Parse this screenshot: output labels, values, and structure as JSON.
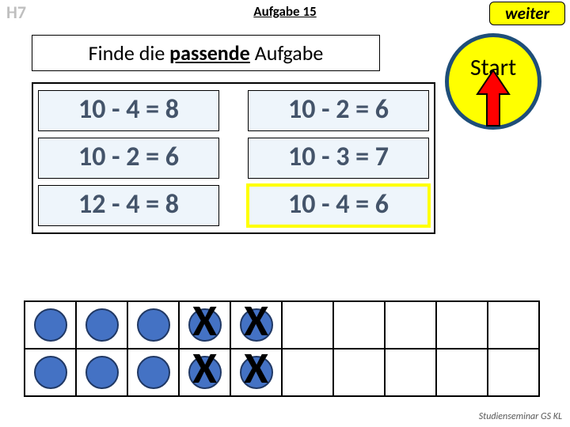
{
  "header": {
    "code": "H7",
    "task_number": "Aufgabe 15",
    "next_label": "weiter"
  },
  "instruction": {
    "pre": "Finde die ",
    "emph": "passende",
    "post": " Aufgabe"
  },
  "start": {
    "label": "Start",
    "circle_fill": "#ffff00",
    "circle_stroke": "#1f4e79",
    "arrow_fill": "#ff0000",
    "arrow_stroke": "#000000"
  },
  "equations": {
    "cells": [
      {
        "text": "10 - 4 = 8",
        "highlight": false
      },
      {
        "text": "10 - 2 = 6",
        "highlight": false
      },
      {
        "text": "10 - 2 = 6",
        "highlight": false
      },
      {
        "text": "10 - 3 = 7",
        "highlight": false
      },
      {
        "text": "12 - 4 = 8",
        "highlight": false
      },
      {
        "text": "10 - 4 = 6",
        "highlight": true
      }
    ],
    "cell_bg": "#eef5fb",
    "cell_text_color": "#44546a"
  },
  "score": {
    "rows": 2,
    "cols": 10,
    "dot_fill": "#4472c4",
    "dot_stroke": "#203864",
    "cells": [
      [
        "dot",
        "dot",
        "dot",
        "x",
        "x",
        "",
        "",
        "",
        "",
        ""
      ],
      [
        "dot",
        "dot",
        "dot",
        "x",
        "x",
        "",
        "",
        "",
        "",
        ""
      ]
    ]
  },
  "footer": "Studienseminar GS KL"
}
